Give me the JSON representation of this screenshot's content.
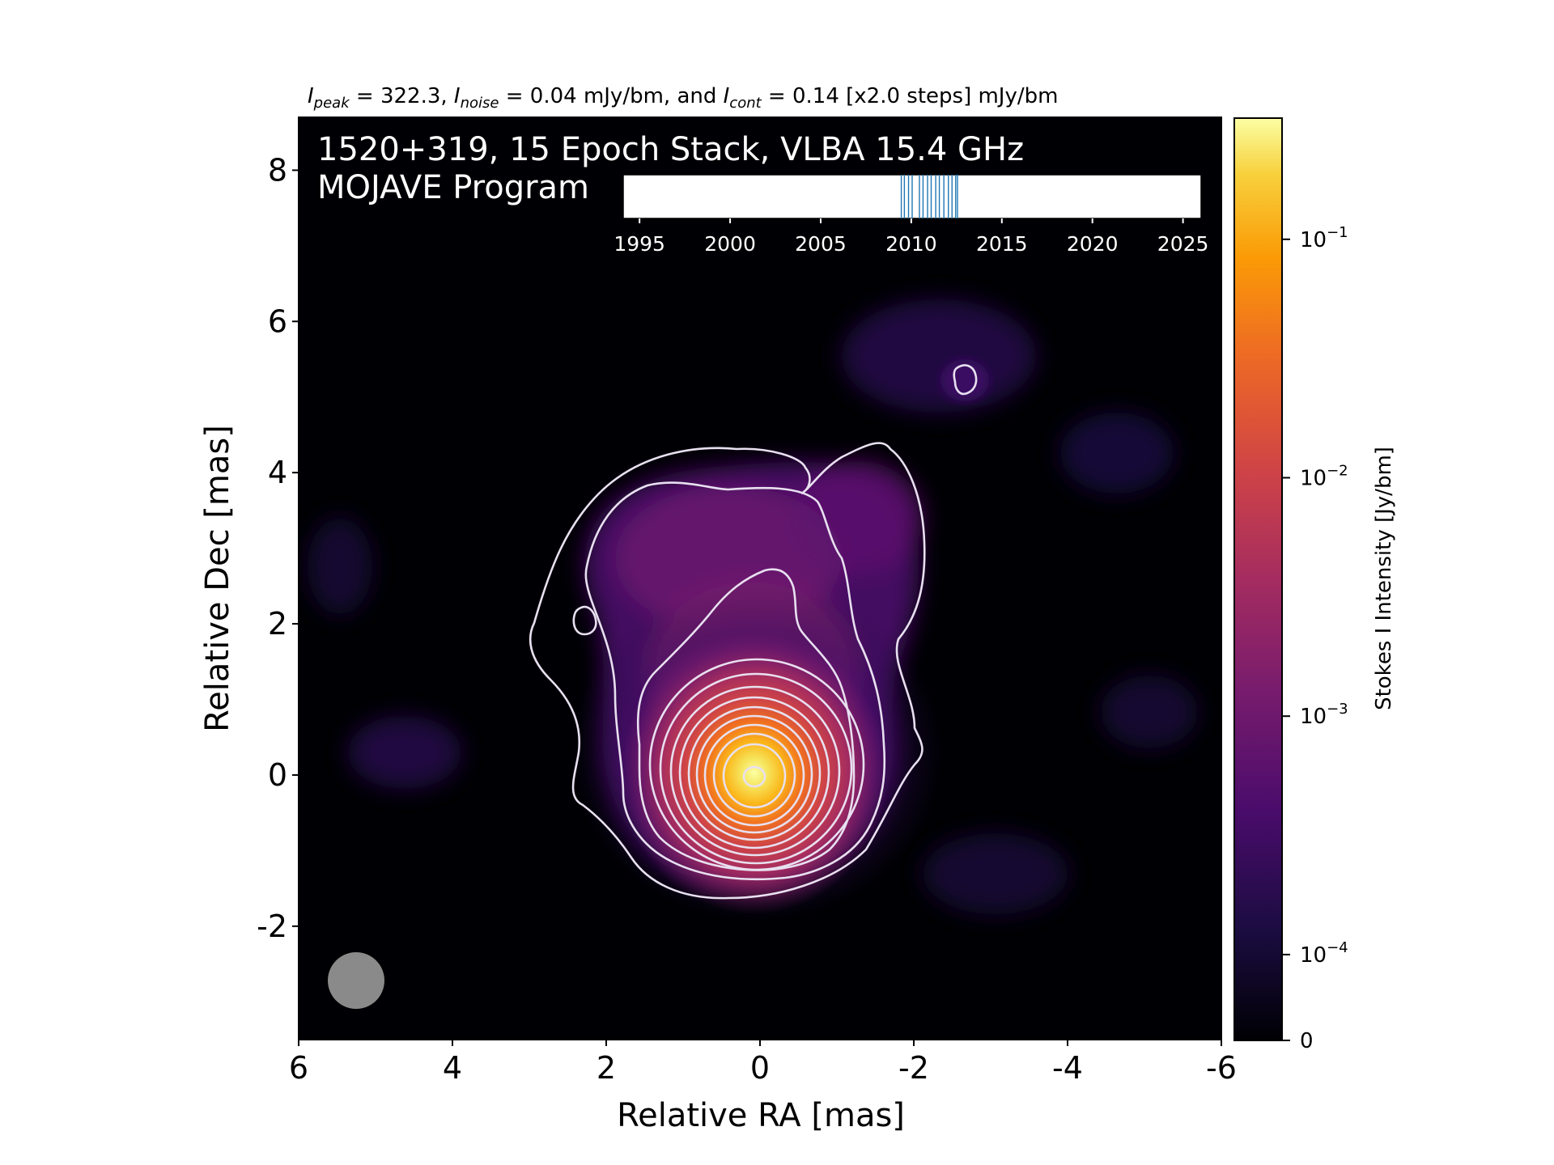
{
  "header": {
    "peak_symbol": "I",
    "peak_sub": "peak",
    "peak_text": " = 322.3, ",
    "noise_symbol": "I",
    "noise_sub": "noise",
    "noise_text": " = 0.04 mJy/bm, and ",
    "cont_symbol": "I",
    "cont_sub": "cont",
    "cont_text": " = 0.14 [x2.0 steps] mJy/bm"
  },
  "overlay": {
    "source_line": "1520+319, 15 Epoch Stack, VLBA 15.4 GHz",
    "program_line": "MOJAVE Program"
  },
  "chart_data": {
    "type": "heatmap",
    "xlabel": "Relative RA [mas]",
    "ylabel": "Relative Dec [mas]",
    "xlim": [
      6,
      -6
    ],
    "ylim": [
      -3.5,
      8.7
    ],
    "x_ticks": [
      6,
      4,
      2,
      0,
      -2,
      -4,
      -6
    ],
    "y_ticks": [
      -2,
      0,
      2,
      4,
      6,
      8
    ],
    "x_tick_labels": [
      "6",
      "4",
      "2",
      "0",
      "-2",
      "-4",
      "-6"
    ],
    "y_tick_labels": [
      "-2",
      "0",
      "2",
      "4",
      "6",
      "8"
    ],
    "colormap": "inferno",
    "background_color": "#000004",
    "contour_color": "#e8e0f0",
    "beam": {
      "x": 5.25,
      "y": -2.75,
      "diameter_mas": 0.75,
      "color": "#8a8a8a"
    },
    "source_core": {
      "x": 0.0,
      "y": 0.0
    },
    "secondary_islands": [
      {
        "x": -2.8,
        "y": 5.2
      },
      {
        "x": 2.3,
        "y": 2.05
      }
    ],
    "contour_count_core": 13,
    "colorbar": {
      "label": "Stokes I Intensity [Jy/bm]",
      "scale": "log",
      "ticks": [
        {
          "value": 0.1,
          "base": "10",
          "exp": "−1"
        },
        {
          "value": 0.01,
          "base": "10",
          "exp": "−2"
        },
        {
          "value": 0.001,
          "base": "10",
          "exp": "−3"
        },
        {
          "value": 0.0001,
          "base": "10",
          "exp": "−4"
        },
        {
          "value": 0,
          "base": "0",
          "exp": ""
        }
      ],
      "max": 0.3223
    },
    "epoch_timeline": {
      "xlim": [
        1994.1,
        2026.0
      ],
      "tick_years": [
        1995,
        2000,
        2005,
        2010,
        2015,
        2020,
        2025
      ],
      "tick_labels": [
        "1995",
        "2000",
        "2005",
        "2010",
        "2015",
        "2020",
        "2025"
      ],
      "epochs": [
        2009.45,
        2009.62,
        2009.85,
        2010.05,
        2010.45,
        2010.65,
        2010.9,
        2011.1,
        2011.35,
        2011.55,
        2011.8,
        2012.05,
        2012.25,
        2012.45,
        2012.55
      ],
      "mark_color": "#1f77b4"
    }
  }
}
